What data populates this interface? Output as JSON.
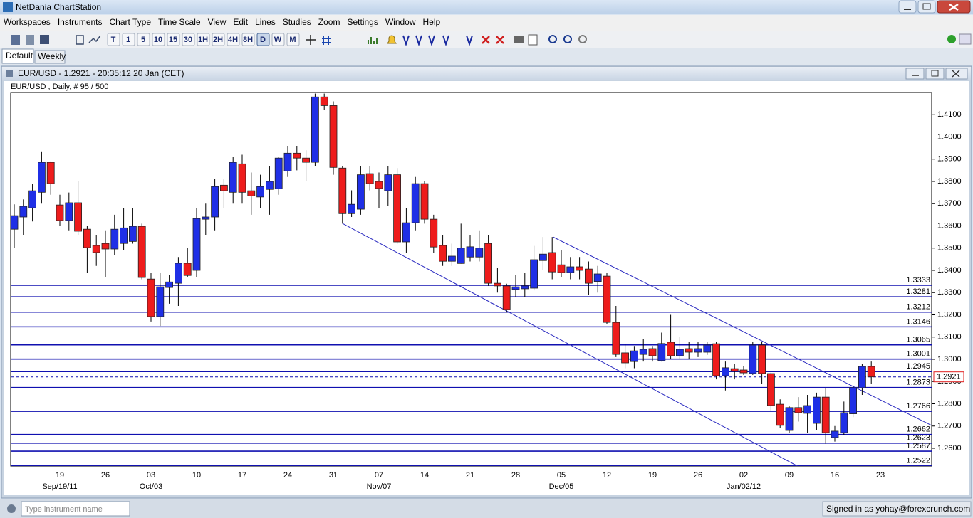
{
  "app": {
    "title": "NetDania ChartStation",
    "menu": [
      "Workspaces",
      "Instruments",
      "Chart Type",
      "Time Scale",
      "View",
      "Edit",
      "Lines",
      "Studies",
      "Zoom",
      "Settings",
      "Window",
      "Help"
    ],
    "timeframe_buttons": [
      "T",
      "1",
      "5",
      "10",
      "15",
      "30",
      "1H",
      "2H",
      "4H",
      "8H",
      "D",
      "W",
      "M"
    ],
    "tabs": [
      "Default",
      "Weekly"
    ],
    "window_title": "EUR/USD - 1.2921 - 20:35:12  20 Jan (CET)",
    "search_placeholder": "Type instrument name",
    "status": "Signed in as yohay@forexcrunch.com"
  },
  "chart_data": {
    "type": "candlestick",
    "title": "EUR/USD , Daily, # 95 / 500",
    "categories": [
      null,
      null,
      null,
      null,
      null,
      "19",
      null,
      null,
      null,
      null,
      "26",
      null,
      null,
      null,
      null,
      "03",
      null,
      null,
      null,
      null,
      "10",
      null,
      null,
      null,
      null,
      "17",
      null,
      null,
      null,
      null,
      "24",
      null,
      null,
      null,
      null,
      "31",
      null,
      null,
      null,
      null,
      "07",
      null,
      null,
      null,
      null,
      "14",
      null,
      null,
      null,
      null,
      "21",
      null,
      null,
      null,
      null,
      "28",
      null,
      null,
      null,
      null,
      "05",
      null,
      null,
      null,
      null,
      "12",
      null,
      null,
      null,
      null,
      "19",
      null,
      null,
      null,
      null,
      "26",
      null,
      null,
      null,
      null,
      "02",
      null,
      null,
      null,
      null,
      "09",
      null,
      null,
      null,
      null,
      "16",
      null,
      null,
      null,
      null,
      "23"
    ],
    "category_sublabels": [
      null,
      null,
      null,
      null,
      null,
      "Sep/19/11",
      null,
      null,
      null,
      null,
      null,
      null,
      null,
      null,
      null,
      "Oct/03",
      null,
      null,
      null,
      null,
      null,
      null,
      null,
      null,
      null,
      null,
      null,
      null,
      null,
      null,
      null,
      null,
      null,
      null,
      null,
      null,
      null,
      null,
      null,
      null,
      "Nov/07",
      null,
      null,
      null,
      null,
      null,
      null,
      null,
      null,
      null,
      null,
      null,
      null,
      null,
      null,
      null,
      null,
      null,
      null,
      null,
      "Dec/05",
      null,
      null,
      null,
      null,
      null,
      null,
      null,
      null,
      null,
      null,
      null,
      null,
      null,
      null,
      null,
      null,
      null,
      null,
      null,
      "Jan/02/12",
      null,
      null,
      null,
      null,
      null,
      null,
      null,
      null,
      null,
      null,
      null,
      null,
      null,
      null,
      null
    ],
    "open": [
      1.3585,
      1.364,
      1.3681,
      1.3751,
      1.3886,
      1.3694,
      1.3624,
      1.3704,
      1.3585,
      1.3512,
      1.3521,
      1.3496,
      1.3521,
      1.353,
      1.3598,
      1.3361,
      1.3192,
      1.3323,
      1.3342,
      1.3432,
      1.34,
      1.363,
      1.364,
      1.3783,
      1.3751,
      1.3879,
      1.3758,
      1.373,
      1.3764,
      1.3767,
      1.3847,
      1.3927,
      1.3905,
      1.3886,
      1.418,
      1.4141,
      1.386,
      1.3655,
      1.3675,
      1.3835,
      1.38,
      1.3758,
      1.383,
      1.3528,
      1.3614,
      1.379,
      1.363,
      1.3512,
      1.3441,
      1.3431,
      1.346,
      1.346,
      1.3521,
      1.3342,
      1.333,
      1.3314,
      1.3317,
      1.332,
      1.3444,
      1.348,
      1.3425,
      1.339,
      1.3416,
      1.3406,
      1.335,
      1.3374,
      1.3166,
      1.3029,
      1.299,
      1.3022,
      1.3048,
      1.2994,
      1.3077,
      1.3016,
      1.3048,
      1.3032,
      1.3032,
      1.307,
      1.2926,
      1.2958,
      1.2952,
      1.2936,
      1.3064,
      1.2936,
      1.2798,
      1.268,
      1.2783,
      1.2757,
      1.2712,
      1.283,
      1.2648,
      1.267,
      1.2755,
      1.2872,
      1.2968,
      null
    ],
    "high": [
      1.3697,
      1.3719,
      1.379,
      1.3935,
      1.389,
      1.374,
      1.375,
      1.38,
      1.36,
      1.356,
      1.358,
      1.365,
      1.368,
      1.368,
      1.361,
      1.339,
      1.339,
      1.338,
      1.346,
      1.35,
      1.368,
      1.37,
      1.381,
      1.381,
      1.391,
      1.392,
      1.384,
      1.383,
      1.387,
      1.391,
      1.396,
      1.396,
      1.394,
      1.4195,
      1.4195,
      1.416,
      1.387,
      1.376,
      1.387,
      1.387,
      1.384,
      1.387,
      1.386,
      1.368,
      1.382,
      1.38,
      1.365,
      1.356,
      1.352,
      1.361,
      1.356,
      1.358,
      1.356,
      1.341,
      1.334,
      1.338,
      1.339,
      1.351,
      1.355,
      1.355,
      1.349,
      1.346,
      1.346,
      1.344,
      1.342,
      1.339,
      1.324,
      1.307,
      1.306,
      1.309,
      1.306,
      1.312,
      1.32,
      1.31,
      1.308,
      1.308,
      1.308,
      1.308,
      1.299,
      1.298,
      1.297,
      1.308,
      1.308,
      1.294,
      1.282,
      1.279,
      1.283,
      1.284,
      1.285,
      1.287,
      1.27,
      1.281,
      1.288,
      1.298,
      1.299,
      null
    ],
    "low": [
      1.3502,
      1.356,
      1.362,
      1.37,
      1.374,
      1.36,
      1.358,
      1.356,
      1.339,
      1.342,
      1.337,
      1.347,
      1.349,
      1.352,
      1.336,
      1.317,
      1.315,
      1.325,
      1.324,
      1.337,
      1.337,
      1.356,
      1.358,
      1.368,
      1.37,
      1.37,
      1.365,
      1.368,
      1.365,
      1.374,
      1.382,
      1.385,
      1.38,
      1.387,
      1.412,
      1.383,
      1.361,
      1.364,
      1.365,
      1.376,
      1.368,
      1.369,
      1.352,
      1.348,
      1.358,
      1.361,
      1.348,
      1.342,
      1.342,
      1.343,
      1.344,
      1.344,
      1.333,
      1.33,
      1.321,
      1.328,
      1.328,
      1.331,
      1.34,
      1.336,
      1.337,
      1.336,
      1.336,
      1.329,
      1.33,
      1.316,
      1.301,
      1.296,
      1.296,
      1.299,
      1.299,
      1.299,
      1.3,
      1.3,
      1.3,
      1.301,
      1.302,
      1.291,
      1.286,
      1.291,
      1.293,
      1.293,
      1.289,
      1.277,
      1.269,
      1.267,
      1.272,
      1.267,
      1.268,
      1.262,
      1.263,
      1.266,
      1.274,
      1.284,
      1.289,
      null
    ],
    "close": [
      1.3646,
      1.3688,
      1.3758,
      1.3886,
      1.379,
      1.3624,
      1.3704,
      1.3576,
      1.3502,
      1.348,
      1.3496,
      1.3585,
      1.3591,
      1.3598,
      1.3368,
      1.3192,
      1.3326,
      1.3348,
      1.3432,
      1.3377,
      1.3633,
      1.364,
      1.3777,
      1.3758,
      1.3886,
      1.3751,
      1.3735,
      1.3777,
      1.38,
      1.3905,
      1.3927,
      1.3905,
      1.3886,
      1.418,
      1.4141,
      1.3863,
      1.3655,
      1.3697,
      1.383,
      1.379,
      1.3768,
      1.383,
      1.3528,
      1.3614,
      1.379,
      1.363,
      1.3505,
      1.3441,
      1.3464,
      1.35,
      1.3506,
      1.35,
      1.3342,
      1.333,
      1.3224,
      1.3326,
      1.333,
      1.3448,
      1.3473,
      1.3393,
      1.339,
      1.3416,
      1.34,
      1.3342,
      1.3384,
      1.3166,
      1.3022,
      1.2984,
      1.3038,
      1.3045,
      1.3016,
      1.3071,
      1.3016,
      1.3045,
      1.3032,
      1.3048,
      1.3064,
      1.2926,
      1.2962,
      1.2946,
      1.2939,
      1.3064,
      1.2936,
      1.2792,
      1.2703,
      1.2783,
      1.276,
      1.2792,
      1.283,
      1.267,
      1.2677,
      1.276,
      1.2872,
      1.2968,
      1.2921,
      null
    ],
    "up_color": "#1f2fe6",
    "down_color": "#ee1c1c",
    "wick_color": "#000000",
    "ylim": [
      1.252,
      1.42
    ],
    "yticks": [
      {
        "value": 1.26,
        "label": "1.2600"
      },
      {
        "value": 1.27,
        "label": "1.2700"
      },
      {
        "value": 1.28,
        "label": "1.2800"
      },
      {
        "value": 1.29,
        "label": "1.2900"
      },
      {
        "value": 1.3,
        "label": "1.3000"
      },
      {
        "value": 1.31,
        "label": "1.3100"
      },
      {
        "value": 1.32,
        "label": "1.3200"
      },
      {
        "value": 1.33,
        "label": "1.3300"
      },
      {
        "value": 1.34,
        "label": "1.3400"
      },
      {
        "value": 1.35,
        "label": "1.3500"
      },
      {
        "value": 1.36,
        "label": "1.3600"
      },
      {
        "value": 1.37,
        "label": "1.3700"
      },
      {
        "value": 1.38,
        "label": "1.3800"
      },
      {
        "value": 1.39,
        "label": "1.3900"
      },
      {
        "value": 1.4,
        "label": "1.4000"
      },
      {
        "value": 1.41,
        "label": "1.4100"
      }
    ],
    "levels": [
      1.3333,
      1.3281,
      1.3212,
      1.3146,
      1.3065,
      1.3001,
      1.2945,
      1.2873,
      1.2766,
      1.2662,
      1.2623,
      1.2587,
      1.2522
    ],
    "level_color": "#1010b0",
    "current_price": 1.2921,
    "current_price_color": "#e02020",
    "trendlines": [
      {
        "from": [
          36,
          1.3611
        ],
        "to": [
          85.9,
          1.252
        ]
      },
      {
        "from": [
          59.1,
          1.355
        ],
        "to": [
          100.6,
          1.2703
        ]
      }
    ],
    "trendline_color": "#2a2ac0"
  }
}
